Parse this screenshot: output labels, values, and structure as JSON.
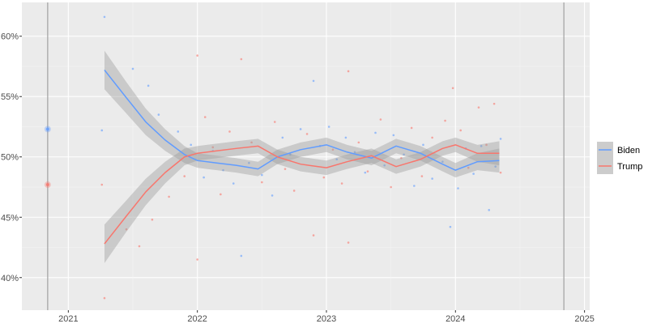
{
  "chart_data": {
    "type": "scatter",
    "title": "",
    "xlabel": "",
    "ylabel": "",
    "xlim": [
      2020.64,
      2025.04
    ],
    "ylim": [
      37.3,
      62.8
    ],
    "x_ticks": [
      2021,
      2022,
      2023,
      2024,
      2025
    ],
    "x_tick_labels": [
      "2021",
      "2022",
      "2023",
      "2024",
      "2025"
    ],
    "y_ticks": [
      40,
      45,
      50,
      55,
      60
    ],
    "y_tick_labels": [
      "40%",
      "45%",
      "50%",
      "55%",
      "60%"
    ],
    "vlines": [
      2020.84,
      2024.84
    ],
    "grid": true,
    "legend_position": "right",
    "election_result": [
      {
        "series": "Biden",
        "x": 2020.84,
        "y": 52.3
      },
      {
        "series": "Trump",
        "x": 2020.84,
        "y": 47.7
      }
    ],
    "series": [
      {
        "name": "Biden",
        "color": "#619CFF",
        "smooth_x": [
          2021.28,
          2021.45,
          2021.6,
          2021.75,
          2021.9,
          2022.0,
          2022.15,
          2022.3,
          2022.47,
          2022.62,
          2022.8,
          2023.0,
          2023.16,
          2023.35,
          2023.54,
          2023.73,
          2023.9,
          2024.0,
          2024.17,
          2024.34
        ],
        "smooth_y": [
          57.2,
          54.9,
          52.9,
          51.4,
          50.2,
          49.7,
          49.5,
          49.3,
          49.0,
          50.0,
          50.6,
          51.0,
          50.4,
          49.9,
          50.9,
          50.3,
          49.4,
          48.9,
          49.6,
          49.7
        ],
        "ci": [
          1.6,
          1.3,
          1.1,
          0.9,
          0.7,
          0.6,
          0.6,
          0.6,
          0.6,
          0.6,
          0.6,
          0.6,
          0.6,
          0.6,
          0.6,
          0.6,
          0.6,
          0.6,
          0.7,
          1.0
        ],
        "points": [
          [
            2021.26,
            52.2
          ],
          [
            2021.28,
            61.6
          ],
          [
            2021.5,
            57.3
          ],
          [
            2021.62,
            55.9
          ],
          [
            2021.7,
            53.5
          ],
          [
            2021.85,
            52.1
          ],
          [
            2021.95,
            51.0
          ],
          [
            2022.05,
            48.3
          ],
          [
            2022.12,
            50.5
          ],
          [
            2022.2,
            48.9
          ],
          [
            2022.28,
            47.8
          ],
          [
            2022.34,
            41.8
          ],
          [
            2022.4,
            49.5
          ],
          [
            2022.5,
            48.5
          ],
          [
            2022.58,
            46.8
          ],
          [
            2022.66,
            51.6
          ],
          [
            2022.72,
            50.2
          ],
          [
            2022.8,
            52.3
          ],
          [
            2022.9,
            56.3
          ],
          [
            2022.95,
            50.9
          ],
          [
            2023.02,
            52.5
          ],
          [
            2023.08,
            49.8
          ],
          [
            2023.15,
            51.6
          ],
          [
            2023.22,
            50.4
          ],
          [
            2023.3,
            48.7
          ],
          [
            2023.38,
            52.0
          ],
          [
            2023.45,
            49.3
          ],
          [
            2023.52,
            51.8
          ],
          [
            2023.6,
            50.2
          ],
          [
            2023.68,
            47.6
          ],
          [
            2023.75,
            51.0
          ],
          [
            2023.82,
            48.2
          ],
          [
            2023.9,
            49.6
          ],
          [
            2023.96,
            44.2
          ],
          [
            2024.02,
            47.4
          ],
          [
            2024.08,
            50.7
          ],
          [
            2024.14,
            48.6
          ],
          [
            2024.2,
            50.9
          ],
          [
            2024.26,
            45.6
          ],
          [
            2024.31,
            49.2
          ],
          [
            2024.35,
            51.5
          ]
        ]
      },
      {
        "name": "Trump",
        "color": "#F8766D",
        "smooth_x": [
          2021.28,
          2021.45,
          2021.6,
          2021.75,
          2021.9,
          2022.0,
          2022.15,
          2022.3,
          2022.47,
          2022.62,
          2022.8,
          2023.0,
          2023.16,
          2023.35,
          2023.54,
          2023.73,
          2023.9,
          2024.0,
          2024.17,
          2024.34
        ],
        "smooth_y": [
          42.8,
          45.1,
          47.1,
          48.7,
          50.0,
          50.3,
          50.5,
          50.7,
          50.9,
          50.0,
          49.4,
          49.1,
          49.6,
          50.1,
          49.2,
          49.8,
          50.7,
          51.0,
          50.3,
          50.3
        ],
        "ci": [
          1.6,
          1.3,
          1.1,
          0.9,
          0.7,
          0.6,
          0.6,
          0.6,
          0.6,
          0.6,
          0.6,
          0.6,
          0.6,
          0.6,
          0.6,
          0.6,
          0.6,
          0.6,
          0.7,
          1.0
        ],
        "points": [
          [
            2021.26,
            47.7
          ],
          [
            2021.28,
            38.3
          ],
          [
            2021.45,
            44.0
          ],
          [
            2021.55,
            42.6
          ],
          [
            2021.65,
            44.8
          ],
          [
            2021.78,
            46.7
          ],
          [
            2021.9,
            48.4
          ],
          [
            2022.0,
            58.4
          ],
          [
            2022.0,
            41.5
          ],
          [
            2022.06,
            53.3
          ],
          [
            2022.12,
            50.8
          ],
          [
            2022.18,
            46.9
          ],
          [
            2022.25,
            52.1
          ],
          [
            2022.34,
            58.1
          ],
          [
            2022.42,
            51.2
          ],
          [
            2022.5,
            47.9
          ],
          [
            2022.6,
            52.9
          ],
          [
            2022.68,
            49.0
          ],
          [
            2022.75,
            47.2
          ],
          [
            2022.85,
            51.9
          ],
          [
            2022.9,
            43.5
          ],
          [
            2022.98,
            48.3
          ],
          [
            2023.05,
            50.6
          ],
          [
            2023.12,
            47.8
          ],
          [
            2023.17,
            57.1
          ],
          [
            2023.17,
            42.9
          ],
          [
            2023.25,
            51.2
          ],
          [
            2023.32,
            48.8
          ],
          [
            2023.42,
            53.1
          ],
          [
            2023.5,
            47.5
          ],
          [
            2023.58,
            49.9
          ],
          [
            2023.66,
            52.4
          ],
          [
            2023.74,
            48.4
          ],
          [
            2023.82,
            51.6
          ],
          [
            2023.92,
            53.0
          ],
          [
            2023.98,
            55.7
          ],
          [
            2024.04,
            52.2
          ],
          [
            2024.1,
            49.1
          ],
          [
            2024.18,
            54.1
          ],
          [
            2024.24,
            51.0
          ],
          [
            2024.3,
            54.4
          ],
          [
            2024.35,
            48.7
          ]
        ]
      }
    ]
  }
}
